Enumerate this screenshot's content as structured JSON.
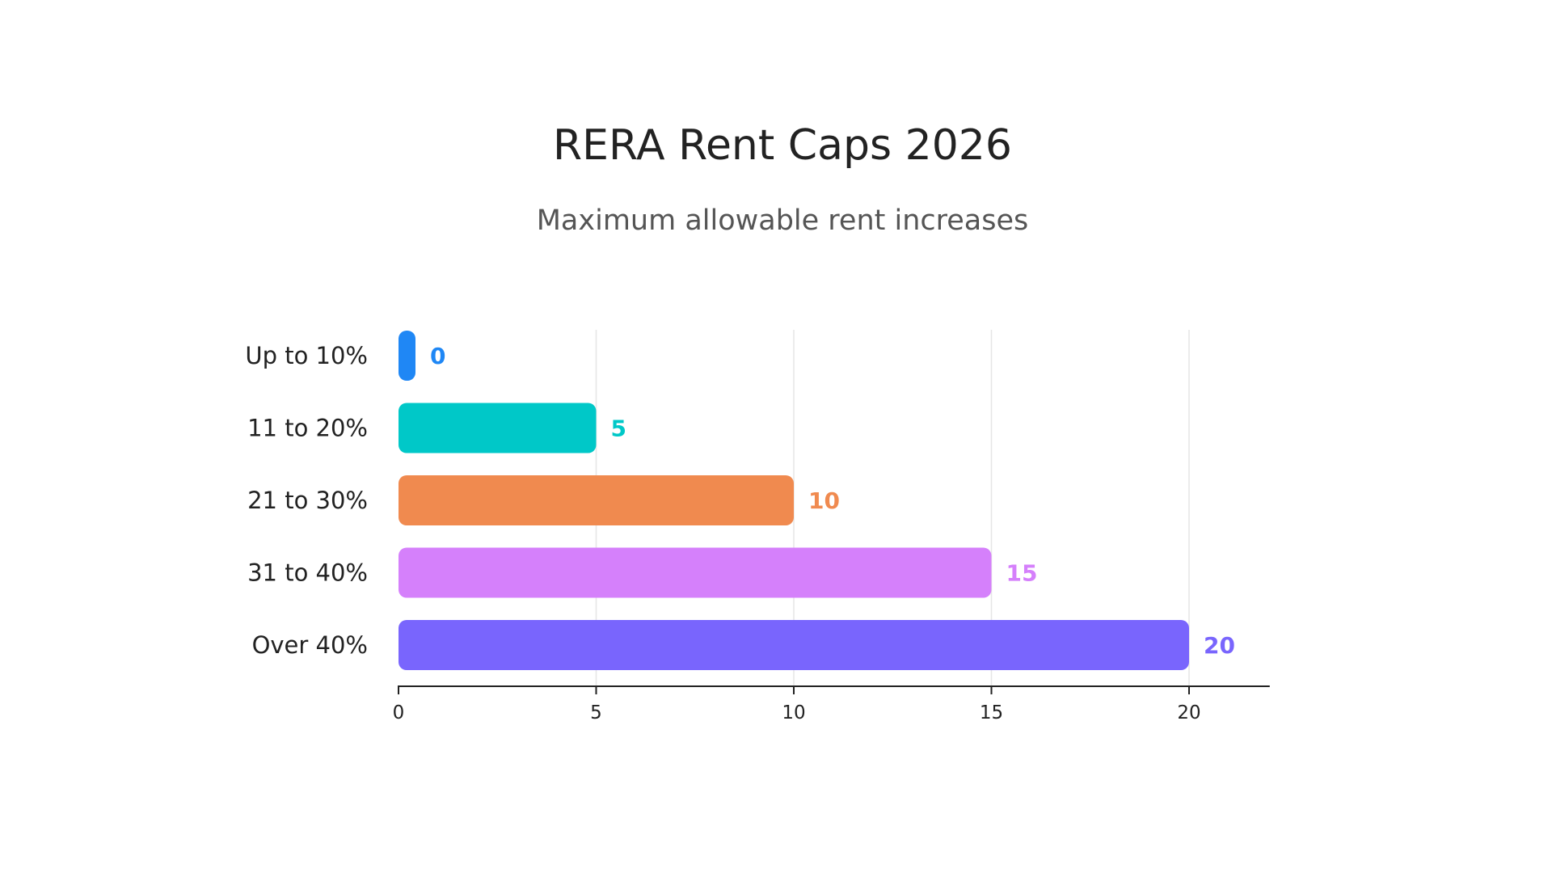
{
  "chart_data": {
    "type": "bar",
    "orientation": "horizontal",
    "title": "RERA Rent Caps 2026",
    "subtitle": "Maximum allowable rent increases",
    "xlabel": "",
    "ylabel": "",
    "categories": [
      "Up to 10%",
      "11 to 20%",
      "21 to 30%",
      "31 to 40%",
      "Over 40%"
    ],
    "values": [
      0,
      5,
      10,
      15,
      20
    ],
    "value_labels": [
      "0",
      "5",
      "10",
      "15",
      "20"
    ],
    "colors": [
      "#1f87f5",
      "#00c8c8",
      "#f08a4f",
      "#d580fb",
      "#7965fd"
    ],
    "xlim": [
      0,
      22
    ],
    "xticks": [
      0,
      5,
      10,
      15,
      20
    ],
    "xtick_labels": [
      "0",
      "5",
      "10",
      "15",
      "20"
    ],
    "grid": true,
    "legend": "none"
  }
}
